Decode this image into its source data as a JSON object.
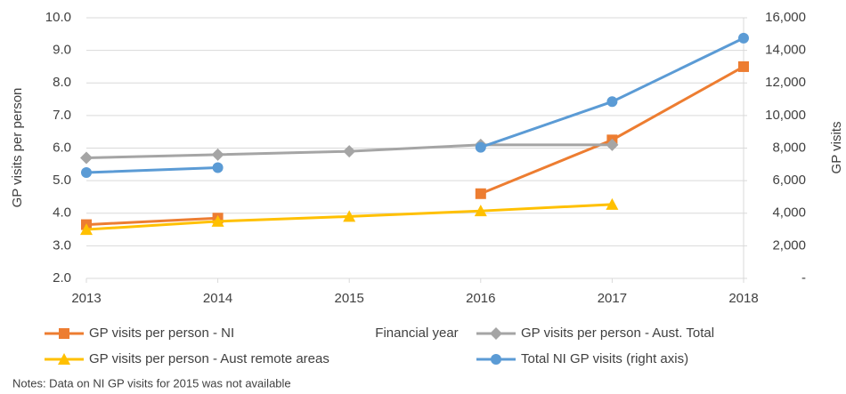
{
  "chart_data": {
    "type": "line",
    "y_label": "GP visits per person",
    "y2_label": "GP visits",
    "x_label": "Financial year",
    "note": "Notes: Data on NI GP visits for 2015 was not available",
    "x": [
      2013,
      2014,
      2015,
      2016,
      2017,
      2018
    ],
    "xlim": [
      2013,
      2018
    ],
    "xticks": [
      2013,
      2014,
      2015,
      2016,
      2017,
      2018
    ],
    "ylim": [
      2,
      10
    ],
    "yticks": [
      {
        "value": 2,
        "label": "2.0"
      },
      {
        "value": 3,
        "label": "3.0"
      },
      {
        "value": 4,
        "label": "4.0"
      },
      {
        "value": 5,
        "label": "5.0"
      },
      {
        "value": 6,
        "label": "6.0"
      },
      {
        "value": 7,
        "label": "7.0"
      },
      {
        "value": 8,
        "label": "8.0"
      },
      {
        "value": 9,
        "label": "9.0"
      },
      {
        "value": 10,
        "label": "10.0"
      }
    ],
    "y2lim": [
      0,
      16000
    ],
    "y2ticks": [
      {
        "value": 0,
        "label": "-"
      },
      {
        "value": 2000,
        "label": "2,000"
      },
      {
        "value": 4000,
        "label": "4,000"
      },
      {
        "value": 6000,
        "label": "6,000"
      },
      {
        "value": 8000,
        "label": "8,000"
      },
      {
        "value": 10000,
        "label": "10,000"
      },
      {
        "value": 12000,
        "label": "12,000"
      },
      {
        "value": 14000,
        "label": "14,000"
      },
      {
        "value": 16000,
        "label": "16,000"
      }
    ],
    "grid": true,
    "series": [
      {
        "name": "GP visits per person - NI",
        "color": "#ed7d31",
        "marker": "square",
        "values": [
          3.65,
          3.85,
          null,
          4.6,
          6.25,
          8.5
        ]
      },
      {
        "name": "GP visits per person - Aust. Total",
        "color": "#a5a5a5",
        "marker": "diamond",
        "values": [
          5.7,
          5.8,
          5.9,
          6.1,
          6.1,
          null
        ]
      },
      {
        "name": "GP visits per person  - Aust remote areas",
        "color": "#ffc000",
        "marker": "triangle",
        "values": [
          3.5,
          3.75,
          3.9,
          4.07,
          4.27,
          null
        ]
      },
      {
        "name": "Total NI GP visits (right axis)",
        "color": "#5b9bd5",
        "marker": "circle",
        "axis": "y2",
        "values": [
          6500,
          6800,
          null,
          8050,
          10850,
          14750
        ]
      }
    ]
  }
}
